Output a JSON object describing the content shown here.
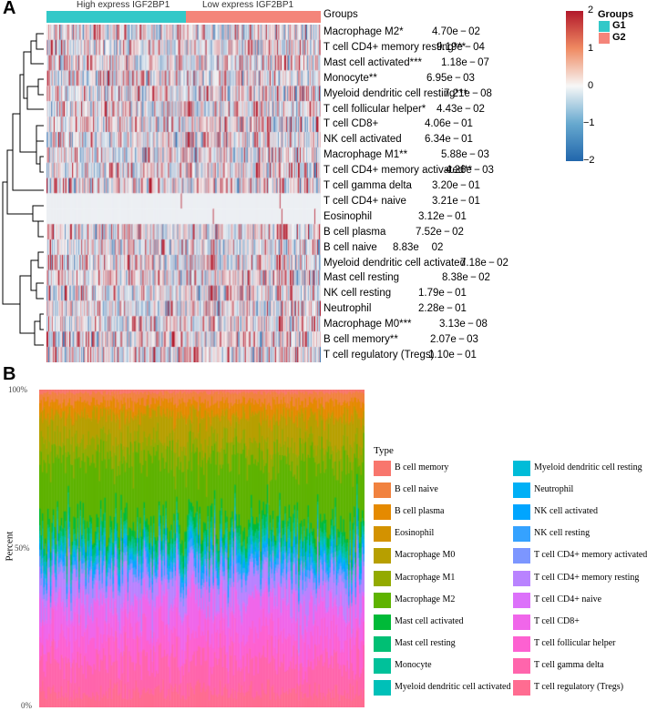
{
  "figure": {
    "panel_a_label": "A",
    "panel_b_label": "B"
  },
  "panel_a": {
    "group_bar": {
      "high_label": "High express IGF2BP1",
      "low_label": "Low express IGF2BP1",
      "groups_label": "Groups",
      "high_color": "#32c8c8",
      "low_color": "#f4857a"
    },
    "rows": [
      {
        "label": "Macrophage M2*",
        "p": "4.70e − 02"
      },
      {
        "label": "T cell CD4+ memory resting***",
        "p": "9.19e − 04"
      },
      {
        "label": "Mast cell activated***",
        "p": "1.18e − 07"
      },
      {
        "label": "Monocyte**",
        "p": "6.95e − 03"
      },
      {
        "label": "Myeloid dendritic cell resting***",
        "p": "7.21e − 08"
      },
      {
        "label": "T cell follicular helper*",
        "p": "4.43e − 02"
      },
      {
        "label": "T cell CD8+",
        "p": "4.06e − 01"
      },
      {
        "label": "NK cell activated",
        "p": "6.34e − 01"
      },
      {
        "label": "Macrophage M1**",
        "p": "5.88e − 03"
      },
      {
        "label": "T cell CD4+ memory activated**",
        "p": "4.26e − 03"
      },
      {
        "label": "T cell gamma delta",
        "p": "3.20e − 01"
      },
      {
        "label": "T cell CD4+ naive",
        "p": "3.21e − 01"
      },
      {
        "label": "Eosinophil",
        "p": "3.12e − 01"
      },
      {
        "label": "B cell plasma",
        "p": "7.52e − 02"
      },
      {
        "label": "B cell naive",
        "p": "8.83e  02"
      },
      {
        "label": "Myeloid dendritic cell activated",
        "p": "7.18e − 02"
      },
      {
        "label": "Mast cell resting",
        "p": "8.38e − 02"
      },
      {
        "label": "NK cell resting",
        "p": "1.79e − 01"
      },
      {
        "label": "Neutrophil",
        "p": "2.28e − 01"
      },
      {
        "label": "Macrophage M0***",
        "p": "3.13e − 08"
      },
      {
        "label": "B cell memory**",
        "p": "2.07e − 03"
      },
      {
        "label": "T cell regulatory (Tregs)",
        "p": "1.10e − 01"
      }
    ],
    "colorbar": {
      "ticks": [
        "2",
        "1",
        "0",
        "−1",
        "−2"
      ],
      "high_color": "#b2182b",
      "mid_color": "#f7f7f7",
      "low_color": "#2166ac"
    },
    "group_legend": {
      "title": "Groups",
      "items": [
        {
          "label": "G1",
          "color": "#32c8c8"
        },
        {
          "label": "G2",
          "color": "#f4857a"
        }
      ]
    }
  },
  "panel_b": {
    "y_axis_title": "Percent",
    "y_ticks": [
      "100%",
      "50%",
      "0%"
    ],
    "legend_title": "Type"
  },
  "chart_data": {
    "type": "area",
    "title": "",
    "xlabel": "",
    "ylabel": "Percent",
    "ylim": [
      0,
      100
    ],
    "series": [
      {
        "name": "B cell memory",
        "color": "#f8766d",
        "approx_mean_percent": 1
      },
      {
        "name": "B cell naive",
        "color": "#f1823f",
        "approx_mean_percent": 3
      },
      {
        "name": "B cell plasma",
        "color": "#e58a00",
        "approx_mean_percent": 4
      },
      {
        "name": "Eosinophil",
        "color": "#d39200",
        "approx_mean_percent": 0.5
      },
      {
        "name": "Macrophage M0",
        "color": "#b79f00",
        "approx_mean_percent": 8
      },
      {
        "name": "Macrophage M1",
        "color": "#93aa00",
        "approx_mean_percent": 6
      },
      {
        "name": "Macrophage M2",
        "color": "#5eb300",
        "approx_mean_percent": 20
      },
      {
        "name": "Mast cell activated",
        "color": "#00ba38",
        "approx_mean_percent": 3
      },
      {
        "name": "Mast cell resting",
        "color": "#00bf74",
        "approx_mean_percent": 2
      },
      {
        "name": "Monocyte",
        "color": "#00c19a",
        "approx_mean_percent": 2
      },
      {
        "name": "Myeloid dendritic cell activated",
        "color": "#00c0b8",
        "approx_mean_percent": 1
      },
      {
        "name": "Myeloid dendritic cell resting",
        "color": "#00bcd8",
        "approx_mean_percent": 1
      },
      {
        "name": "Neutrophil",
        "color": "#00b0f6",
        "approx_mean_percent": 1
      },
      {
        "name": "NK cell activated",
        "color": "#00a5ff",
        "approx_mean_percent": 2
      },
      {
        "name": "NK cell resting",
        "color": "#35a2ff",
        "approx_mean_percent": 2
      },
      {
        "name": "T cell CD4+ memory activated",
        "color": "#7c96ff",
        "approx_mean_percent": 2
      },
      {
        "name": "T cell CD4+ memory resting",
        "color": "#b983ff",
        "approx_mean_percent": 8
      },
      {
        "name": "T cell CD4+ naive",
        "color": "#dc71fa",
        "approx_mean_percent": 1
      },
      {
        "name": "T cell CD8+",
        "color": "#f066ea",
        "approx_mean_percent": 10
      },
      {
        "name": "T cell follicular helper",
        "color": "#fd61d1",
        "approx_mean_percent": 8
      },
      {
        "name": "T cell gamma delta",
        "color": "#ff65ac",
        "approx_mean_percent": 10
      },
      {
        "name": "T cell regulatory (Tregs)",
        "color": "#ff6c91",
        "approx_mean_percent": 5
      }
    ]
  }
}
